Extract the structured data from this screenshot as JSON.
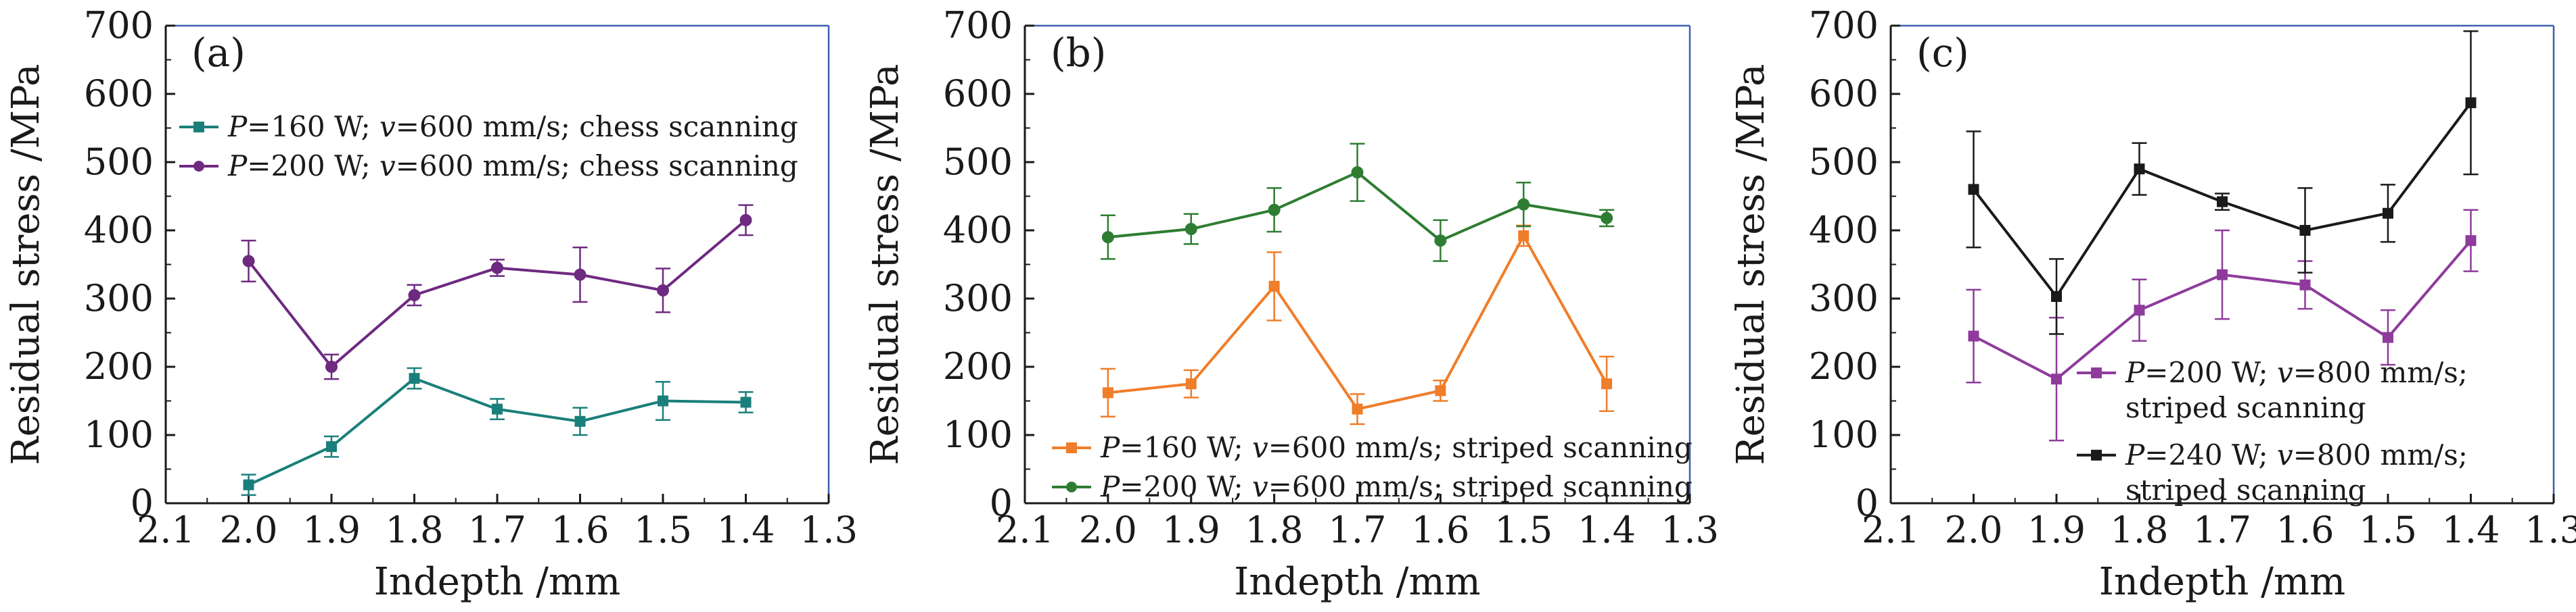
{
  "chart_data": [
    {
      "panel": "(a)",
      "type": "line",
      "xlabel": "Indepth /mm",
      "ylabel": "Residual stress /MPa",
      "xlim": [
        2.1,
        1.3
      ],
      "ylim": [
        0,
        700
      ],
      "xticks": [
        "2.1",
        "2.0",
        "1.9",
        "1.8",
        "1.7",
        "1.6",
        "1.5",
        "1.4",
        "1.3"
      ],
      "yticks": [
        "0",
        "100",
        "200",
        "300",
        "400",
        "500",
        "600",
        "700"
      ],
      "legend_position": "upper-left",
      "x": [
        2.0,
        1.9,
        1.8,
        1.7,
        1.6,
        1.5,
        1.4
      ],
      "series": [
        {
          "name": "P=160 W; v=600 mm/s; chess scanning",
          "label_parts": [
            "P",
            "=160 W; ",
            "v",
            "=600 mm/s; chess scanning"
          ],
          "color": "#1a7f7a",
          "marker": "square",
          "values": [
            27,
            83,
            183,
            138,
            120,
            150,
            148
          ],
          "errors": [
            15,
            15,
            15,
            15,
            20,
            28,
            15
          ]
        },
        {
          "name": "P=200 W; v=600 mm/s; chess scanning",
          "label_parts": [
            "P",
            "=200 W; ",
            "v",
            "=600 mm/s; chess scanning"
          ],
          "color": "#6e2a80",
          "marker": "circle",
          "values": [
            355,
            200,
            305,
            345,
            335,
            312,
            415
          ],
          "errors": [
            30,
            18,
            15,
            12,
            40,
            32,
            22
          ]
        }
      ]
    },
    {
      "panel": "(b)",
      "type": "line",
      "xlabel": "Indepth /mm",
      "ylabel": "Residual stress /MPa",
      "xlim": [
        2.1,
        1.3
      ],
      "ylim": [
        0,
        700
      ],
      "xticks": [
        "2.1",
        "2.0",
        "1.9",
        "1.8",
        "1.7",
        "1.6",
        "1.5",
        "1.4",
        "1.3"
      ],
      "yticks": [
        "0",
        "100",
        "200",
        "300",
        "400",
        "500",
        "600",
        "700"
      ],
      "legend_position": "lower-left",
      "x": [
        2.0,
        1.9,
        1.8,
        1.7,
        1.6,
        1.5,
        1.4
      ],
      "series": [
        {
          "name": "P=160 W; v=600 mm/s; striped scanning",
          "label_parts": [
            "P",
            "=160 W; ",
            "v",
            "=600 mm/s; striped scanning"
          ],
          "color": "#f07d2a",
          "marker": "square",
          "values": [
            162,
            175,
            318,
            138,
            165,
            392,
            175
          ],
          "errors": [
            35,
            20,
            50,
            22,
            15,
            15,
            40
          ]
        },
        {
          "name": "P=200 W; v=600 mm/s; striped scanning",
          "label_parts": [
            "P",
            "=200 W; ",
            "v",
            "=600 mm/s; striped scanning"
          ],
          "color": "#2e7d32",
          "marker": "circle",
          "values": [
            390,
            402,
            430,
            485,
            385,
            438,
            418
          ],
          "errors": [
            32,
            22,
            32,
            42,
            30,
            32,
            12
          ]
        }
      ]
    },
    {
      "panel": "(c)",
      "type": "line",
      "xlabel": "Indepth /mm",
      "ylabel": "Residual stress /MPa",
      "xlim": [
        2.1,
        1.3
      ],
      "ylim": [
        0,
        700
      ],
      "xticks": [
        "2.1",
        "2.0",
        "1.9",
        "1.8",
        "1.7",
        "1.6",
        "1.5",
        "1.4",
        "1.3"
      ],
      "yticks": [
        "0",
        "100",
        "200",
        "300",
        "400",
        "500",
        "600",
        "700"
      ],
      "legend_position": "lower-right",
      "x": [
        2.0,
        1.9,
        1.8,
        1.7,
        1.6,
        1.5,
        1.4
      ],
      "series": [
        {
          "name": "P=200 W; v=800 mm/s; striped scanning",
          "label_parts": [
            "P",
            "=200 W; ",
            "v",
            "=800 mm/s;"
          ],
          "label_line2": "striped scanning",
          "color": "#8e3b9c",
          "marker": "square",
          "values": [
            245,
            182,
            283,
            335,
            320,
            243,
            385
          ],
          "errors": [
            68,
            90,
            45,
            65,
            35,
            40,
            45
          ]
        },
        {
          "name": "P=240 W; v=800 mm/s; striped scanning",
          "label_parts": [
            "P",
            "=240 W; ",
            "v",
            "=800 mm/s;"
          ],
          "label_line2": "striped scanning",
          "color": "#1a1a1a",
          "marker": "square",
          "values": [
            460,
            303,
            490,
            442,
            400,
            425,
            587
          ],
          "errors": [
            85,
            55,
            38,
            12,
            62,
            42,
            105
          ]
        }
      ]
    }
  ]
}
